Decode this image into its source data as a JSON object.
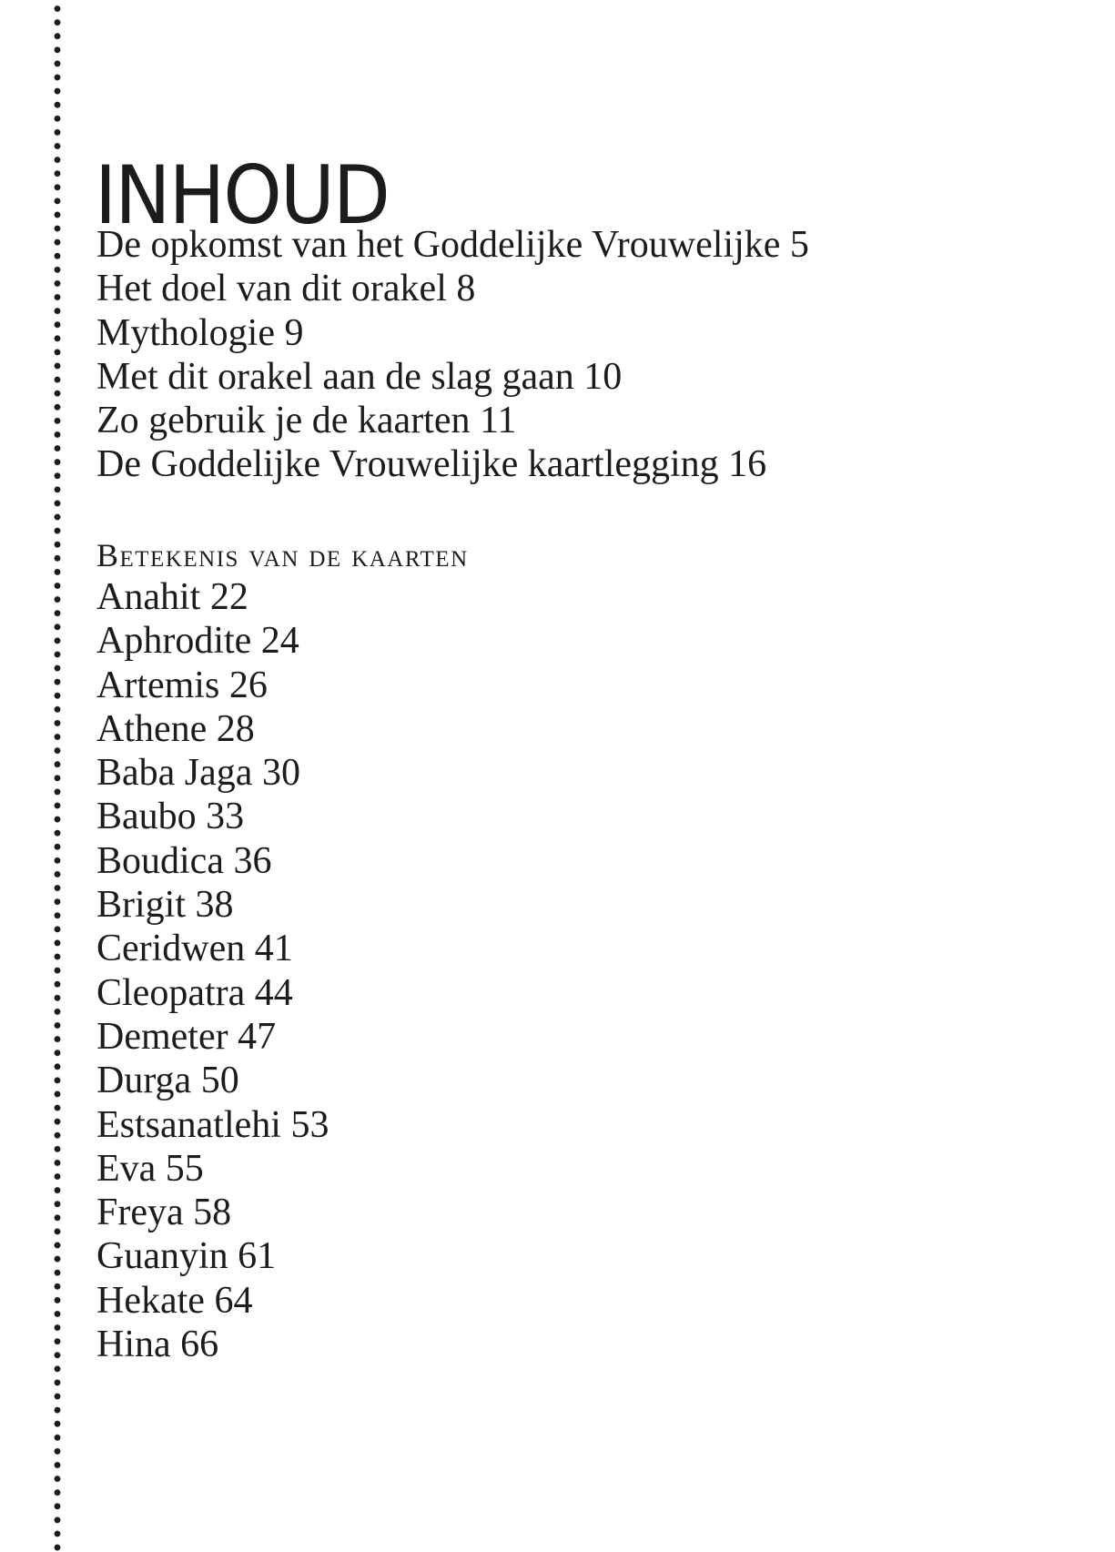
{
  "title": "INHOUD",
  "intro_items": [
    {
      "label": "De opkomst van het Goddelijke Vrouwelijke",
      "page": "5"
    },
    {
      "label": "Het doel van dit orakel",
      "page": "8"
    },
    {
      "label": "Mythologie",
      "page": "9"
    },
    {
      "label": "Met dit orakel aan de slag gaan",
      "page": "10"
    },
    {
      "label": "Zo gebruik je de kaarten",
      "page": "11"
    },
    {
      "label": "De Goddelijke Vrouwelijke kaartlegging",
      "page": "16"
    }
  ],
  "section_heading": "Betekenis van de kaarten",
  "card_items": [
    {
      "label": "Anahit",
      "page": "22"
    },
    {
      "label": "Aphrodite",
      "page": "24"
    },
    {
      "label": "Artemis",
      "page": "26"
    },
    {
      "label": "Athene",
      "page": "28"
    },
    {
      "label": "Baba Jaga",
      "page": "30"
    },
    {
      "label": "Baubo",
      "page": "33"
    },
    {
      "label": "Boudica",
      "page": "36"
    },
    {
      "label": "Brigit",
      "page": "38"
    },
    {
      "label": "Ceridwen",
      "page": "41"
    },
    {
      "label": "Cleopatra",
      "page": "44"
    },
    {
      "label": "Demeter",
      "page": "47"
    },
    {
      "label": "Durga",
      "page": "50"
    },
    {
      "label": "Estsanatlehi",
      "page": "53"
    },
    {
      "label": "Eva",
      "page": "55"
    },
    {
      "label": "Freya",
      "page": "58"
    },
    {
      "label": "Guanyin",
      "page": "61"
    },
    {
      "label": "Hekate",
      "page": "64"
    },
    {
      "label": "Hina",
      "page": "66"
    }
  ]
}
